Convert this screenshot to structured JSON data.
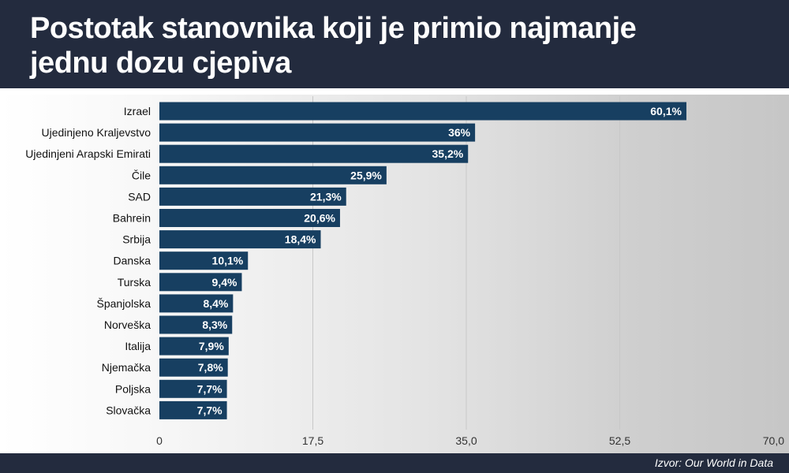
{
  "header": {
    "title_line1": "Postotak stanovnika koji je primio najmanje",
    "title_line2": "jednu dozu cjepiva"
  },
  "footer": {
    "source": "Izvor: Our World in Data"
  },
  "colors": {
    "bar": "#173f61",
    "header_bg": "#232b3e"
  },
  "chart_data": {
    "type": "bar",
    "orientation": "horizontal",
    "title": "Postotak stanovnika koji je primio najmanje jednu dozu cjepiva",
    "categories": [
      "Izrael",
      "Ujedinjeno Kraljevstvo",
      "Ujedinjeni Arapski Emirati",
      "Čile",
      "SAD",
      "Bahrein",
      "Srbija",
      "Danska",
      "Turska",
      "Španjolska",
      "Norveška",
      "Italija",
      "Njemačka",
      "Poljska",
      "Slovačka"
    ],
    "values": [
      60.1,
      36,
      35.2,
      25.9,
      21.3,
      20.6,
      18.4,
      10.1,
      9.4,
      8.4,
      8.3,
      7.9,
      7.8,
      7.7,
      7.7
    ],
    "value_labels": [
      "60,1%",
      "36%",
      "35,2%",
      "25,9%",
      "21,3%",
      "20,6%",
      "18,4%",
      "10,1%",
      "9,4%",
      "8,4%",
      "8,3%",
      "7,9%",
      "7,8%",
      "7,7%",
      "7,7%"
    ],
    "xlim": [
      0,
      70
    ],
    "ticks": [
      0,
      17.5,
      35,
      52.5,
      70
    ],
    "tick_labels": [
      "0",
      "17,5",
      "35,0",
      "52,5",
      "70,0"
    ],
    "grid": true,
    "xlabel": "",
    "ylabel": ""
  }
}
